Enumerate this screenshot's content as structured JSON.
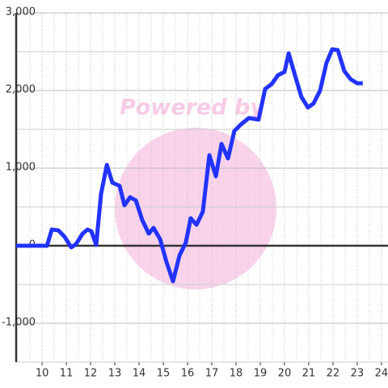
{
  "chart_data": {
    "type": "line",
    "watermark": "Powered by",
    "x": [
      8.93,
      10.2,
      10.4,
      10.67,
      10.93,
      11.2,
      11.4,
      11.67,
      11.87,
      12.03,
      12.23,
      12.43,
      12.67,
      12.9,
      13.2,
      13.4,
      13.63,
      13.87,
      14.13,
      14.4,
      14.6,
      14.87,
      15.13,
      15.4,
      15.67,
      15.93,
      16.13,
      16.37,
      16.63,
      16.9,
      17.17,
      17.4,
      17.67,
      17.93,
      18.2,
      18.53,
      18.93,
      19.2,
      19.47,
      19.73,
      20,
      20.17,
      20.43,
      20.7,
      20.97,
      21.2,
      21.47,
      21.73,
      21.97,
      22.2,
      22.47,
      22.73,
      23,
      23.23
    ],
    "values": [
      0,
      0,
      208,
      198,
      115,
      -21,
      21,
      156,
      208,
      188,
      10,
      667,
      1042,
      813,
      771,
      521,
      625,
      583,
      333,
      156,
      229,
      83,
      -208,
      -458,
      -125,
      42,
      354,
      271,
      438,
      1167,
      896,
      1313,
      1125,
      1479,
      1563,
      1646,
      1625,
      2021,
      2083,
      2198,
      2240,
      2479,
      2198,
      1917,
      1781,
      1833,
      2000,
      2354,
      2531,
      2521,
      2250,
      2146,
      2094,
      2094
    ],
    "color": "#2233ff",
    "xlim": [
      8.93,
      24.27
    ],
    "xticks": [
      10,
      11,
      12,
      13,
      14,
      15,
      16,
      17,
      18,
      19,
      20,
      21,
      22,
      23,
      24
    ],
    "x_minor_ticks": [
      9.5,
      10.5,
      11.5,
      12.5,
      13.5,
      14.5,
      15.5,
      16.5,
      17.5,
      18.5,
      19.5,
      20.5,
      21.5,
      22.5,
      23.5
    ],
    "ylim": [
      -1500,
      3000
    ],
    "yticks": [
      {
        "value": -1000,
        "label": "-1,000"
      },
      0,
      {
        "value": 1000,
        "label": "1,000"
      },
      {
        "value": 2000,
        "label": "2,000"
      },
      {
        "value": 3000,
        "label": "3,000"
      }
    ],
    "y_minor_ticks": [
      -1500,
      -500,
      500,
      1500,
      2500
    ],
    "grid": true
  }
}
